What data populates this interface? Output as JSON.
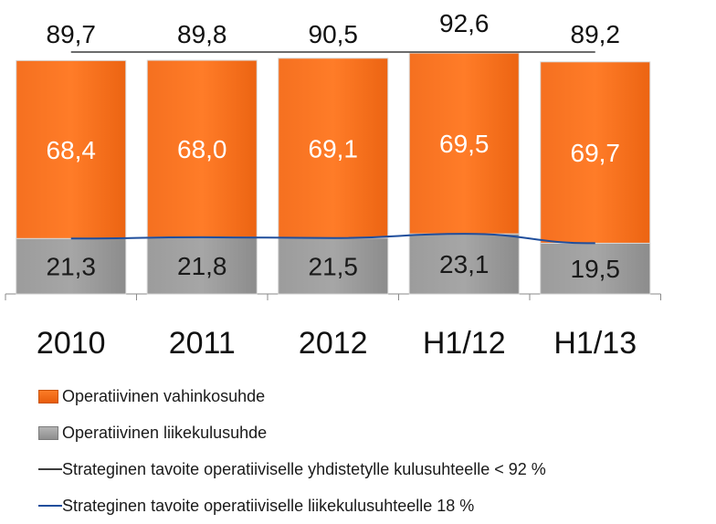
{
  "chart_data": {
    "type": "bar",
    "stacked": true,
    "categories": [
      "2010",
      "2011",
      "2012",
      "H1/12",
      "H1/13"
    ],
    "series": [
      {
        "name": "Operatiivinen liikekulusuhde",
        "values": [
          21.3,
          21.8,
          21.5,
          23.1,
          19.5
        ],
        "labels": [
          "21,3",
          "21,8",
          "21,5",
          "23,1",
          "19,5"
        ],
        "color": "#969696"
      },
      {
        "name": "Operatiivinen vahinkosuhde",
        "values": [
          68.4,
          68.0,
          69.1,
          69.5,
          69.7
        ],
        "labels": [
          "68,4",
          "68,0",
          "69,1",
          "69,5",
          "69,7"
        ],
        "color": "#f26c1a"
      }
    ],
    "totals": [
      89.7,
      89.8,
      90.5,
      92.6,
      89.2
    ],
    "total_labels": [
      "89,7",
      "89,8",
      "90,5",
      "92,6",
      "89,2"
    ],
    "target_lines": [
      {
        "name": "Strateginen tavoite operatiiviselle yhdistetylle kulusuhteelle < 92 %",
        "color": "#3c3c3c"
      },
      {
        "name": "Strateginen tavoite operatiiviselle liikekulusuhteelle 18 %",
        "color": "#1f4e9c"
      }
    ],
    "title": "",
    "xlabel": "",
    "ylabel": "",
    "legend_position": "bottom"
  }
}
